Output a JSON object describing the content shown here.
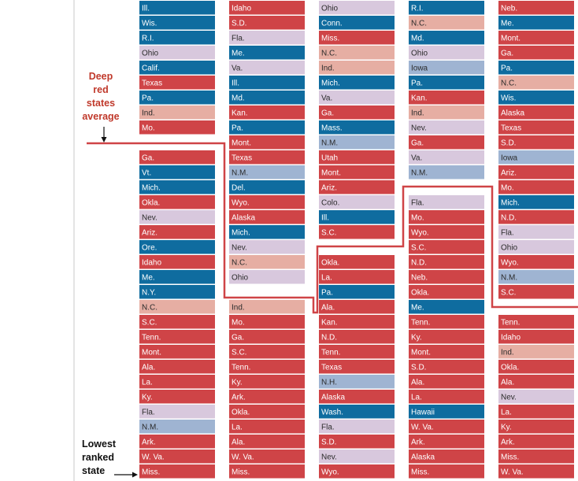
{
  "annotations": {
    "deep_red_lines": [
      "Deep",
      "red",
      "states",
      "average"
    ],
    "lowest_lines": [
      "Lowest",
      "ranked",
      "state"
    ]
  },
  "legend_colors": {
    "solid_red": "#cf4447",
    "light_red": "#e6aea3",
    "solid_blue": "#0f6c9f",
    "light_blue": "#9fb4d2",
    "purple": "#d8c8dd",
    "average_line": "#cf4447"
  },
  "chart_data": {
    "type": "table",
    "columns": [
      {
        "cells": [
          {
            "label": "Ill.",
            "color": "solid_blue"
          },
          {
            "label": "Wis.",
            "color": "solid_blue"
          },
          {
            "label": "R.I.",
            "color": "solid_blue"
          },
          {
            "label": "Ohio",
            "color": "purple"
          },
          {
            "label": "Calif.",
            "color": "solid_blue"
          },
          {
            "label": "Texas",
            "color": "solid_red"
          },
          {
            "label": "Pa.",
            "color": "solid_blue"
          },
          {
            "label": "Ind.",
            "color": "light_red"
          },
          {
            "label": "Mo.",
            "color": "solid_red"
          },
          {
            "label": "",
            "color": "gap"
          },
          {
            "label": "Ga.",
            "color": "solid_red"
          },
          {
            "label": "Vt.",
            "color": "solid_blue"
          },
          {
            "label": "Mich.",
            "color": "solid_blue"
          },
          {
            "label": "Okla.",
            "color": "solid_red"
          },
          {
            "label": "Nev.",
            "color": "purple"
          },
          {
            "label": "Ariz.",
            "color": "solid_red"
          },
          {
            "label": "Ore.",
            "color": "solid_blue"
          },
          {
            "label": "Idaho",
            "color": "solid_red"
          },
          {
            "label": "Me.",
            "color": "solid_blue"
          },
          {
            "label": "N.Y.",
            "color": "solid_blue"
          },
          {
            "label": "N.C.",
            "color": "light_red"
          },
          {
            "label": "S.C.",
            "color": "solid_red"
          },
          {
            "label": "Tenn.",
            "color": "solid_red"
          },
          {
            "label": "Mont.",
            "color": "solid_red"
          },
          {
            "label": "Ala.",
            "color": "solid_red"
          },
          {
            "label": "La.",
            "color": "solid_red"
          },
          {
            "label": "Ky.",
            "color": "solid_red"
          },
          {
            "label": "Fla.",
            "color": "purple"
          },
          {
            "label": "N.M.",
            "color": "light_blue"
          },
          {
            "label": "Ark.",
            "color": "solid_red"
          },
          {
            "label": "W. Va.",
            "color": "solid_red"
          },
          {
            "label": "Miss.",
            "color": "solid_red"
          }
        ]
      },
      {
        "cells": [
          {
            "label": "Idaho",
            "color": "solid_red"
          },
          {
            "label": "S.D.",
            "color": "solid_red"
          },
          {
            "label": "Fla.",
            "color": "purple"
          },
          {
            "label": "Me.",
            "color": "solid_blue"
          },
          {
            "label": "Va.",
            "color": "purple"
          },
          {
            "label": "Ill.",
            "color": "solid_blue"
          },
          {
            "label": "Md.",
            "color": "solid_blue"
          },
          {
            "label": "Kan.",
            "color": "solid_red"
          },
          {
            "label": "Pa.",
            "color": "solid_blue"
          },
          {
            "label": "Mont.",
            "color": "solid_red"
          },
          {
            "label": "Texas",
            "color": "solid_red"
          },
          {
            "label": "N.M.",
            "color": "light_blue"
          },
          {
            "label": "Del.",
            "color": "solid_blue"
          },
          {
            "label": "Wyo.",
            "color": "solid_red"
          },
          {
            "label": "Alaska",
            "color": "solid_red"
          },
          {
            "label": "Mich.",
            "color": "solid_blue"
          },
          {
            "label": "Nev.",
            "color": "purple"
          },
          {
            "label": "N.C.",
            "color": "light_red"
          },
          {
            "label": "Ohio",
            "color": "purple"
          },
          {
            "label": "",
            "color": "gap"
          },
          {
            "label": "Ind.",
            "color": "light_red"
          },
          {
            "label": "Mo.",
            "color": "solid_red"
          },
          {
            "label": "Ga.",
            "color": "solid_red"
          },
          {
            "label": "S.C.",
            "color": "solid_red"
          },
          {
            "label": "Tenn.",
            "color": "solid_red"
          },
          {
            "label": "Ky.",
            "color": "solid_red"
          },
          {
            "label": "Ark.",
            "color": "solid_red"
          },
          {
            "label": "Okla.",
            "color": "solid_red"
          },
          {
            "label": "La.",
            "color": "solid_red"
          },
          {
            "label": "Ala.",
            "color": "solid_red"
          },
          {
            "label": "W. Va.",
            "color": "solid_red"
          },
          {
            "label": "Miss.",
            "color": "solid_red"
          }
        ]
      },
      {
        "cells": [
          {
            "label": "Ohio",
            "color": "purple"
          },
          {
            "label": "Conn.",
            "color": "solid_blue"
          },
          {
            "label": "Miss.",
            "color": "solid_red"
          },
          {
            "label": "N.C.",
            "color": "light_red"
          },
          {
            "label": "Ind.",
            "color": "light_red"
          },
          {
            "label": "Mich.",
            "color": "solid_blue"
          },
          {
            "label": "Va.",
            "color": "purple"
          },
          {
            "label": "Ga.",
            "color": "solid_red"
          },
          {
            "label": "Mass.",
            "color": "solid_blue"
          },
          {
            "label": "N.M.",
            "color": "light_blue"
          },
          {
            "label": "Utah",
            "color": "solid_red"
          },
          {
            "label": "Mont.",
            "color": "solid_red"
          },
          {
            "label": "Ariz.",
            "color": "solid_red"
          },
          {
            "label": "Colo.",
            "color": "purple"
          },
          {
            "label": "Ill.",
            "color": "solid_blue"
          },
          {
            "label": "S.C.",
            "color": "solid_red"
          },
          {
            "label": "",
            "color": "gap"
          },
          {
            "label": "Okla.",
            "color": "solid_red"
          },
          {
            "label": "La.",
            "color": "solid_red"
          },
          {
            "label": "Pa.",
            "color": "solid_blue"
          },
          {
            "label": "Ala.",
            "color": "solid_red"
          },
          {
            "label": "Kan.",
            "color": "solid_red"
          },
          {
            "label": "N.D.",
            "color": "solid_red"
          },
          {
            "label": "Tenn.",
            "color": "solid_red"
          },
          {
            "label": "Texas",
            "color": "solid_red"
          },
          {
            "label": "N.H.",
            "color": "light_blue"
          },
          {
            "label": "Alaska",
            "color": "solid_red"
          },
          {
            "label": "Wash.",
            "color": "solid_blue"
          },
          {
            "label": "Fla.",
            "color": "purple"
          },
          {
            "label": "S.D.",
            "color": "solid_red"
          },
          {
            "label": "Nev.",
            "color": "purple"
          },
          {
            "label": "Wyo.",
            "color": "solid_red"
          }
        ]
      },
      {
        "cells": [
          {
            "label": "R.I.",
            "color": "solid_blue"
          },
          {
            "label": "N.C.",
            "color": "light_red"
          },
          {
            "label": "Md.",
            "color": "solid_blue"
          },
          {
            "label": "Ohio",
            "color": "purple"
          },
          {
            "label": "Iowa",
            "color": "light_blue"
          },
          {
            "label": "Pa.",
            "color": "solid_blue"
          },
          {
            "label": "Kan.",
            "color": "solid_red"
          },
          {
            "label": "Ind.",
            "color": "light_red"
          },
          {
            "label": "Nev.",
            "color": "purple"
          },
          {
            "label": "Ga.",
            "color": "solid_red"
          },
          {
            "label": "Va.",
            "color": "purple"
          },
          {
            "label": "N.M.",
            "color": "light_blue"
          },
          {
            "label": "",
            "color": "gap"
          },
          {
            "label": "Fla.",
            "color": "purple"
          },
          {
            "label": "Mo.",
            "color": "solid_red"
          },
          {
            "label": "Wyo.",
            "color": "solid_red"
          },
          {
            "label": "S.C.",
            "color": "solid_red"
          },
          {
            "label": "N.D.",
            "color": "solid_red"
          },
          {
            "label": "Neb.",
            "color": "solid_red"
          },
          {
            "label": "Okla.",
            "color": "solid_red"
          },
          {
            "label": "Me.",
            "color": "solid_blue"
          },
          {
            "label": "Tenn.",
            "color": "solid_red"
          },
          {
            "label": "Ky.",
            "color": "solid_red"
          },
          {
            "label": "Mont.",
            "color": "solid_red"
          },
          {
            "label": "S.D.",
            "color": "solid_red"
          },
          {
            "label": "Ala.",
            "color": "solid_red"
          },
          {
            "label": "La.",
            "color": "solid_red"
          },
          {
            "label": "Hawaii",
            "color": "solid_blue"
          },
          {
            "label": "W. Va.",
            "color": "solid_red"
          },
          {
            "label": "Ark.",
            "color": "solid_red"
          },
          {
            "label": "Alaska",
            "color": "solid_red"
          },
          {
            "label": "Miss.",
            "color": "solid_red"
          }
        ]
      },
      {
        "cells": [
          {
            "label": "Neb.",
            "color": "solid_red"
          },
          {
            "label": "Me.",
            "color": "solid_blue"
          },
          {
            "label": "Mont.",
            "color": "solid_red"
          },
          {
            "label": "Ga.",
            "color": "solid_red"
          },
          {
            "label": "Pa.",
            "color": "solid_blue"
          },
          {
            "label": "N.C.",
            "color": "light_red"
          },
          {
            "label": "Wis.",
            "color": "solid_blue"
          },
          {
            "label": "Alaska",
            "color": "solid_red"
          },
          {
            "label": "Texas",
            "color": "solid_red"
          },
          {
            "label": "S.D.",
            "color": "solid_red"
          },
          {
            "label": "Iowa",
            "color": "light_blue"
          },
          {
            "label": "Ariz.",
            "color": "solid_red"
          },
          {
            "label": "Mo.",
            "color": "solid_red"
          },
          {
            "label": "Mich.",
            "color": "solid_blue"
          },
          {
            "label": "N.D.",
            "color": "solid_red"
          },
          {
            "label": "Fla.",
            "color": "purple"
          },
          {
            "label": "Ohio",
            "color": "purple"
          },
          {
            "label": "Wyo.",
            "color": "solid_red"
          },
          {
            "label": "N.M.",
            "color": "light_blue"
          },
          {
            "label": "S.C.",
            "color": "solid_red"
          },
          {
            "label": "",
            "color": "gap"
          },
          {
            "label": "Tenn.",
            "color": "solid_red"
          },
          {
            "label": "Idaho",
            "color": "solid_red"
          },
          {
            "label": "Ind.",
            "color": "light_red"
          },
          {
            "label": "Okla.",
            "color": "solid_red"
          },
          {
            "label": "Ala.",
            "color": "solid_red"
          },
          {
            "label": "Nev.",
            "color": "purple"
          },
          {
            "label": "La.",
            "color": "solid_red"
          },
          {
            "label": "Ky.",
            "color": "solid_red"
          },
          {
            "label": "Ark.",
            "color": "solid_red"
          },
          {
            "label": "Miss.",
            "color": "solid_red"
          },
          {
            "label": "W. Va.",
            "color": "solid_red"
          }
        ]
      }
    ]
  }
}
